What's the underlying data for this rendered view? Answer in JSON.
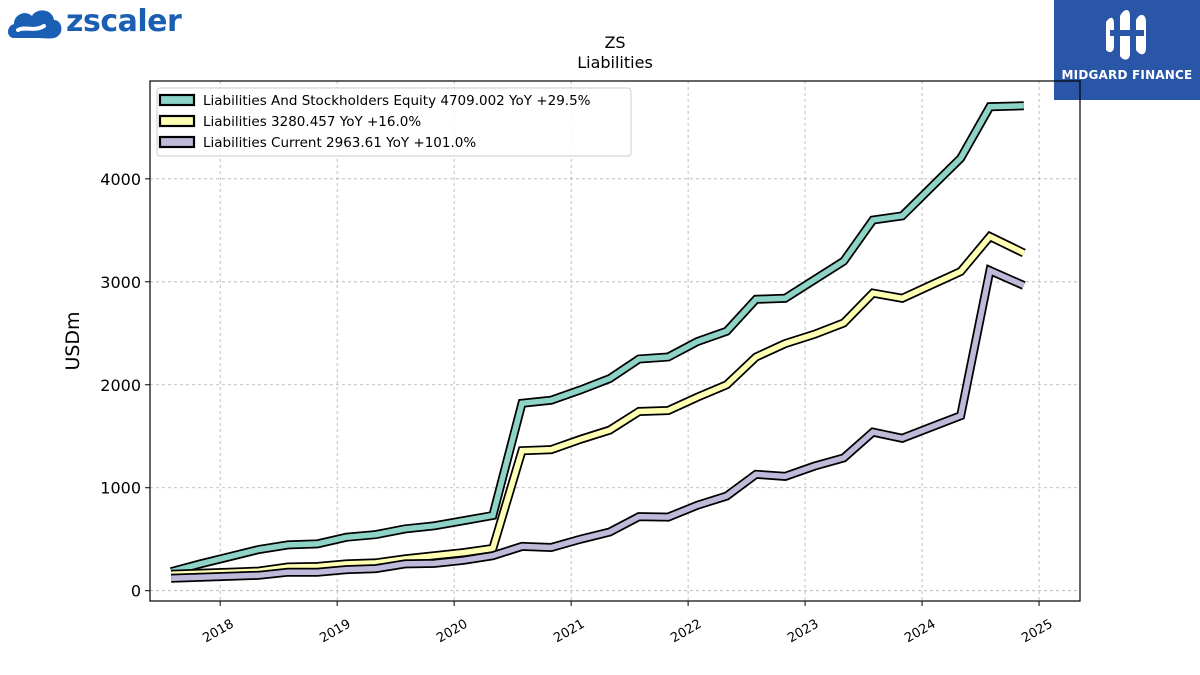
{
  "brand_left": {
    "name": "zscaler",
    "tm": "™",
    "color": "#1a5fb4"
  },
  "brand_right": {
    "name": "MIDGARD FINANCE",
    "bg_color": "#2a56a8"
  },
  "chart_data": {
    "type": "line",
    "title": "ZS",
    "subtitle": "Liabilities",
    "ylabel": "USDm",
    "xlabel": "",
    "xlim": [
      2017.4,
      2025.35
    ],
    "ylim": [
      -100,
      4950
    ],
    "yticks": [
      0,
      1000,
      2000,
      3000,
      4000
    ],
    "xticks": [
      {
        "v": 2018,
        "label": "2018"
      },
      {
        "v": 2019,
        "label": "2019"
      },
      {
        "v": 2020,
        "label": "2020"
      },
      {
        "v": 2021,
        "label": "2021"
      },
      {
        "v": 2022,
        "label": "2022"
      },
      {
        "v": 2023,
        "label": "2023"
      },
      {
        "v": 2024,
        "label": "2024"
      },
      {
        "v": 2025,
        "label": "2025"
      }
    ],
    "grid": true,
    "legend_position": "top-left",
    "series": [
      {
        "name": "Liabilities And Stockholders Equity",
        "legend_label": "Liabilities And Stockholders Equity  4709.002 YoY +29.5%",
        "color": "#8dd3c7",
        "x": [
          2017.58,
          2017.83,
          2018.08,
          2018.33,
          2018.58,
          2018.83,
          2019.08,
          2019.33,
          2019.58,
          2019.83,
          2020.08,
          2020.33,
          2020.58,
          2020.83,
          2021.08,
          2021.33,
          2021.58,
          2021.83,
          2022.08,
          2022.33,
          2022.58,
          2022.83,
          2023.08,
          2023.33,
          2023.58,
          2023.83,
          2024.08,
          2024.33,
          2024.58,
          2024.87
        ],
        "y": [
          185,
          260,
          330,
          400,
          445,
          455,
          520,
          545,
          600,
          630,
          680,
          730,
          1820,
          1850,
          1950,
          2060,
          2250,
          2270,
          2420,
          2520,
          2830,
          2840,
          3020,
          3200,
          3600,
          3640,
          3920,
          4200,
          4700,
          4709
        ]
      },
      {
        "name": "Liabilities",
        "legend_label": "Liabilities  3280.457 YoY +16.0%",
        "color": "#ffffb3",
        "x": [
          2017.58,
          2017.83,
          2018.08,
          2018.33,
          2018.58,
          2018.83,
          2019.08,
          2019.33,
          2019.58,
          2019.83,
          2020.08,
          2020.33,
          2020.58,
          2020.83,
          2021.08,
          2021.33,
          2021.58,
          2021.83,
          2022.08,
          2022.33,
          2022.58,
          2022.83,
          2023.08,
          2023.33,
          2023.58,
          2023.83,
          2024.08,
          2024.33,
          2024.58,
          2024.87
        ],
        "y": [
          160,
          170,
          180,
          190,
          230,
          235,
          260,
          270,
          310,
          340,
          370,
          410,
          1360,
          1370,
          1470,
          1560,
          1740,
          1750,
          1880,
          2000,
          2270,
          2400,
          2490,
          2600,
          2890,
          2840,
          2970,
          3100,
          3440,
          3280
        ]
      },
      {
        "name": "Liabilities Current",
        "legend_label": "Liabilities Current  2963.61 YoY +101.0%",
        "color": "#bebada",
        "x": [
          2017.58,
          2017.83,
          2018.08,
          2018.33,
          2018.58,
          2018.83,
          2019.08,
          2019.33,
          2019.58,
          2019.83,
          2020.08,
          2020.33,
          2020.58,
          2020.83,
          2021.08,
          2021.33,
          2021.58,
          2021.83,
          2022.08,
          2022.33,
          2022.58,
          2022.83,
          2023.08,
          2023.33,
          2023.58,
          2023.83,
          2024.08,
          2024.33,
          2024.58,
          2024.87
        ],
        "y": [
          120,
          130,
          140,
          150,
          180,
          180,
          205,
          215,
          260,
          265,
          295,
          340,
          430,
          420,
          500,
          570,
          720,
          715,
          830,
          920,
          1130,
          1110,
          1210,
          1290,
          1540,
          1480,
          1590,
          1700,
          3110,
          2964
        ]
      }
    ]
  }
}
